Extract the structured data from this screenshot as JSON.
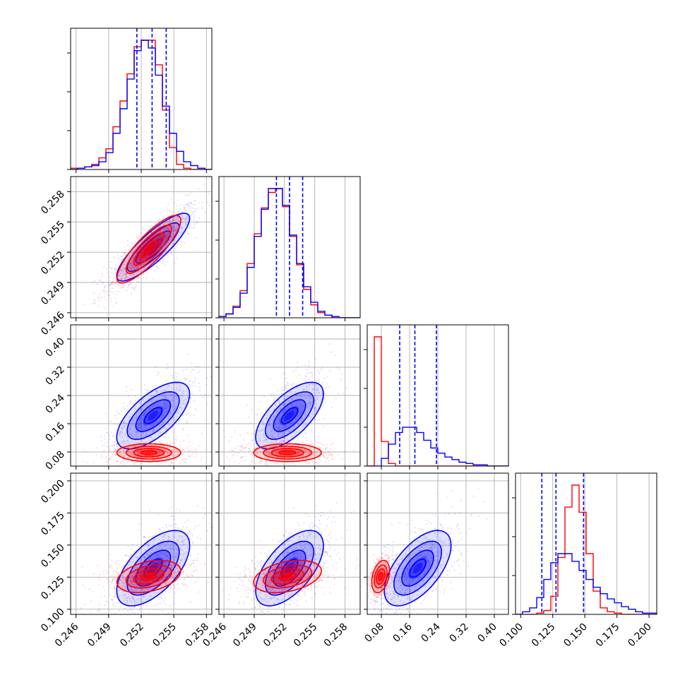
{
  "colors": {
    "red": "#ff0000",
    "blue": "#0000ff",
    "grid": "#b0b0b0"
  },
  "chart_data": {
    "type": "corner",
    "grid": true,
    "parameters": [
      {
        "range": [
          0.2455,
          0.2585
        ],
        "ticks": [
          0.246,
          0.249,
          0.252,
          0.255,
          0.258
        ],
        "tick_labels": [
          "0.246",
          "0.249",
          "0.252",
          "0.255",
          "0.258"
        ]
      },
      {
        "range": [
          0.2455,
          0.2595
        ],
        "ticks": [
          0.246,
          0.249,
          0.252,
          0.255,
          0.258
        ],
        "tick_labels": [
          "0.246",
          "0.249",
          "0.252",
          "0.255",
          "0.258"
        ]
      },
      {
        "range": [
          0.04,
          0.44
        ],
        "ticks": [
          0.08,
          0.16,
          0.24,
          0.32,
          0.4
        ],
        "tick_labels": [
          "0.08",
          "0.16",
          "0.24",
          "0.32",
          "0.40"
        ]
      },
      {
        "range": [
          0.096,
          0.206
        ],
        "ticks": [
          0.1,
          0.125,
          0.15,
          0.175,
          0.2
        ],
        "tick_labels": [
          "0.100",
          "0.125",
          "0.150",
          "0.175",
          "0.200"
        ]
      }
    ],
    "quantiles_blue": [
      [
        0.2516,
        0.253,
        0.2543
      ],
      [
        0.2512,
        0.2525,
        0.2538
      ],
      [
        0.132,
        0.175,
        0.236
      ],
      [
        0.1165,
        0.1275,
        0.149
      ]
    ],
    "series": [
      {
        "color": "red",
        "mean": [
          0.2527,
          0.2523,
          0.078,
          0.1255
        ],
        "std": [
          0.0014,
          0.0016,
          0.012,
          0.006
        ],
        "hist": [
          {
            "edges": [
              0.2455,
              0.2585
            ],
            "values": [
              1,
              1,
              2,
              4,
              9,
              16,
              33,
              53,
              74,
              95,
              100,
              100,
              81,
              46,
              17,
              4,
              1,
              0,
              0,
              0
            ]
          },
          {
            "edges": [
              0.2455,
              0.2595
            ],
            "values": [
              1,
              3,
              9,
              21,
              42,
              65,
              85,
              97,
              100,
              86,
              63,
              41,
              22,
              10,
              4,
              2,
              0,
              0,
              0,
              0
            ]
          },
          {
            "edges": [
              0.04,
              0.44
            ],
            "values": [
              0,
              100,
              19,
              2,
              0,
              0,
              0,
              0,
              0,
              0,
              0,
              0,
              0,
              0,
              0,
              0,
              0,
              0,
              0,
              0
            ]
          },
          {
            "edges": [
              0.096,
              0.206
            ],
            "values": [
              0,
              0,
              0,
              1,
              3,
              14,
              44,
              83,
              100,
              79,
              47,
              18,
              5,
              2,
              1,
              0,
              0,
              0,
              0,
              0
            ]
          }
        ]
      },
      {
        "color": "blue",
        "mean": [
          0.2531,
          0.2525,
          0.183,
          0.132
        ],
        "std": [
          0.0016,
          0.0016,
          0.045,
          0.014
        ],
        "hist": [
          {
            "edges": [
              0.2455,
              0.2585
            ],
            "values": [
              0,
              1,
              2,
              3,
              6,
              13,
              28,
              47,
              70,
              92,
              100,
              94,
              73,
              49,
              28,
              14,
              6,
              3,
              1,
              0
            ]
          },
          {
            "edges": [
              0.2455,
              0.2595
            ],
            "values": [
              1,
              3,
              8,
              19,
              39,
              63,
              84,
              100,
              100,
              87,
              64,
              42,
              24,
              12,
              5,
              2,
              1,
              0,
              0,
              0
            ]
          },
          {
            "edges": [
              0.04,
              0.44
            ],
            "values": [
              0,
              0,
              6,
              17,
              26,
              30,
              30,
              26,
              20,
              14,
              10,
              7,
              5,
              3,
              2,
              1,
              1,
              0,
              0,
              0
            ]
          },
          {
            "edges": [
              0.096,
              0.206
            ],
            "values": [
              0,
              2,
              5,
              13,
              27,
              40,
              47,
              47,
              41,
              34,
              27,
              21,
              16,
              12,
              9,
              6,
              4,
              2,
              1,
              1
            ]
          }
        ]
      }
    ],
    "correlations_red": {
      "1-0": 0.85,
      "2-0": 0.0,
      "2-1": 0.0,
      "3-0": 0.35,
      "3-1": 0.35,
      "3-2": 0.35
    },
    "correlations_blue": {
      "1-0": 0.85,
      "2-0": 0.65,
      "2-1": 0.65,
      "3-0": 0.6,
      "3-1": 0.6,
      "3-2": 0.6
    }
  }
}
